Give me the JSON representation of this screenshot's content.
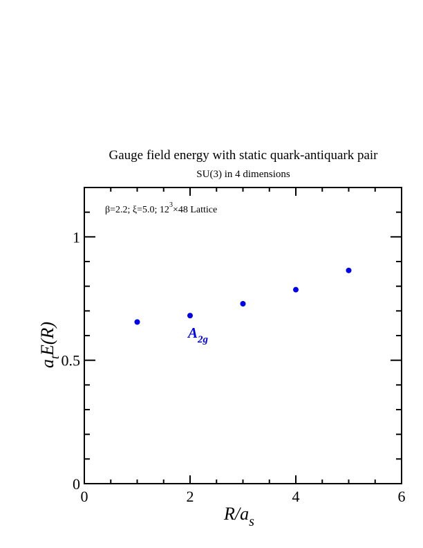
{
  "chart_data": {
    "type": "scatter",
    "title": "Gauge field energy with static quark-antiquark pair",
    "subtitle": "SU(3) in 4 dimensions",
    "xlabel": {
      "main": "R/a",
      "sub": "s"
    },
    "ylabel": {
      "prefix": "a",
      "sub": "t",
      "main": "E(R)"
    },
    "xlim": [
      0,
      6
    ],
    "ylim": [
      0,
      1.2
    ],
    "xticks": [
      "0",
      "2",
      "4",
      "6"
    ],
    "yticks": [
      "0",
      "0.5",
      "1"
    ],
    "annotation": {
      "parts": [
        "β=2.2;  ξ=5.0;  12",
        "3",
        "×48 Lattice"
      ]
    },
    "series": [
      {
        "name": "A2g",
        "label_main": "A",
        "label_sub": "2g",
        "color": "#0000ee",
        "x": [
          1,
          2,
          3,
          4,
          5
        ],
        "y": [
          0.655,
          0.681,
          0.729,
          0.786,
          0.864
        ]
      }
    ],
    "grid": false
  }
}
